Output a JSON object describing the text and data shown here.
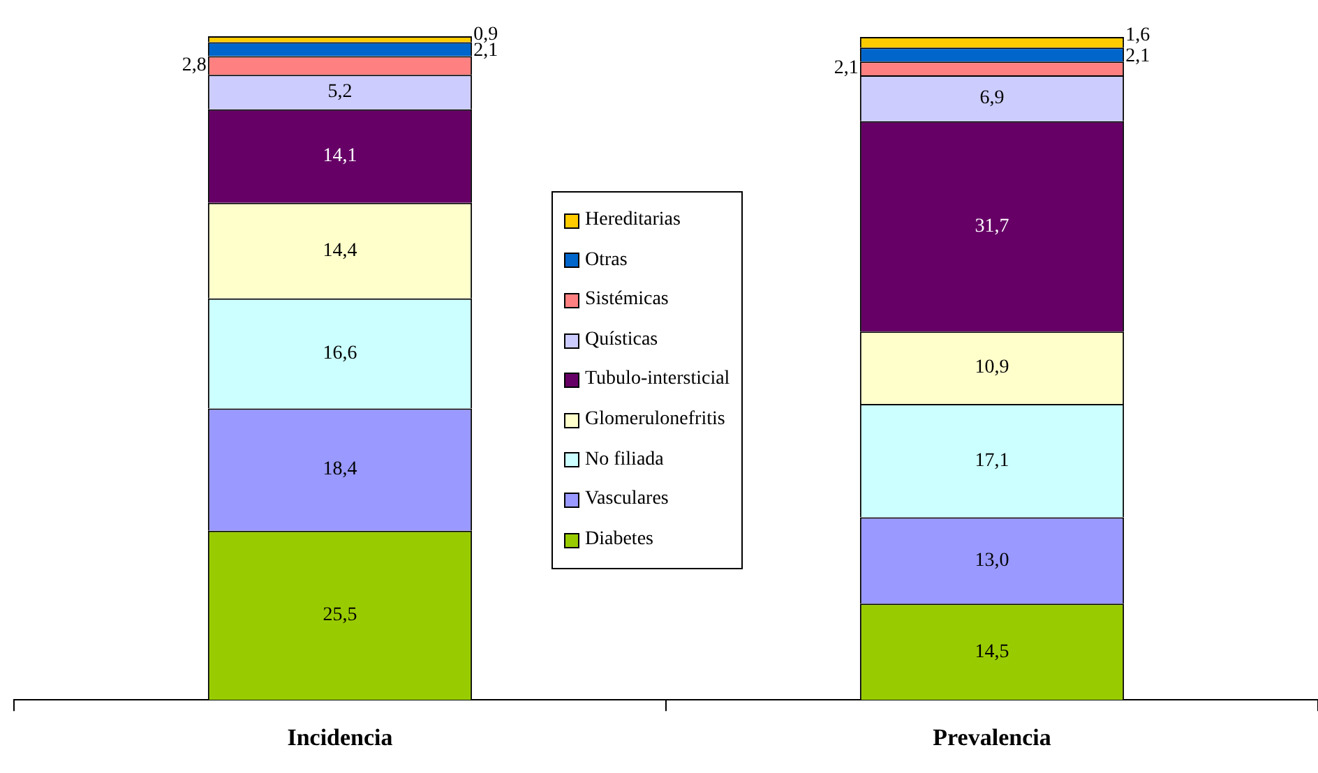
{
  "chart_data": {
    "type": "bar",
    "stacked": true,
    "categories": [
      "Incidencia",
      "Prevalencia"
    ],
    "legend": "center",
    "series": [
      {
        "name": "Diabetes",
        "color": "#99cc00",
        "values": [
          25.5,
          14.5
        ],
        "value_labels": [
          "25,5",
          "14,5"
        ]
      },
      {
        "name": "Vasculares",
        "color": "#9999ff",
        "values": [
          18.4,
          13.0
        ],
        "value_labels": [
          "18,4",
          "13,0"
        ]
      },
      {
        "name": "No filiada",
        "color": "#ccffff",
        "values": [
          16.6,
          17.1
        ],
        "value_labels": [
          "16,6",
          "17,1"
        ]
      },
      {
        "name": "Glomerulonefritis",
        "color": "#ffffcc",
        "values": [
          14.4,
          10.9
        ],
        "value_labels": [
          "14,4",
          "10,9"
        ]
      },
      {
        "name": "Tubulo-intersticial",
        "color": "#660066",
        "values": [
          14.1,
          31.7
        ],
        "value_labels": [
          "14,1",
          "31,7"
        ]
      },
      {
        "name": "Quísticas",
        "color": "#ccccff",
        "values": [
          5.2,
          6.9
        ],
        "value_labels": [
          "5,2",
          "6,9"
        ]
      },
      {
        "name": "Sistémicas",
        "color": "#ff8080",
        "values": [
          2.8,
          2.1
        ],
        "value_labels": [
          "2,8",
          "2,1"
        ]
      },
      {
        "name": "Otras",
        "color": "#0066cc",
        "values": [
          2.1,
          2.1
        ],
        "value_labels": [
          "2,1",
          "2,1"
        ]
      },
      {
        "name": "Hereditarias",
        "color": "#ffcc00",
        "values": [
          0.9,
          1.6
        ],
        "value_labels": [
          "0,9",
          "1,6"
        ]
      }
    ]
  }
}
